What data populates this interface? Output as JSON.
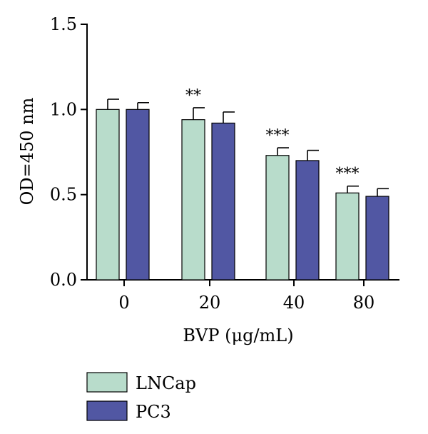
{
  "chart_data": {
    "type": "bar",
    "title": "",
    "xlabel": "BVP (μg/mL)",
    "ylabel": "OD=450 nm",
    "categories": [
      "0",
      "20",
      "40",
      "80"
    ],
    "ylim": [
      0.0,
      1.5
    ],
    "yticks": [
      "0.0",
      "0.5",
      "1.0",
      "1.5"
    ],
    "series": [
      {
        "name": "LNCap",
        "color": "#b8dccb",
        "values": [
          1.0,
          0.94,
          0.73,
          0.51
        ],
        "errors": [
          0.06,
          0.07,
          0.045,
          0.04
        ]
      },
      {
        "name": "PC3",
        "color": "#5157a3",
        "values": [
          1.0,
          0.92,
          0.7,
          0.49
        ],
        "errors": [
          0.04,
          0.065,
          0.06,
          0.045
        ]
      }
    ],
    "annotations": [
      {
        "category": "20",
        "series": "LNCap",
        "text": "**"
      },
      {
        "category": "40",
        "series": "LNCap",
        "text": "***"
      },
      {
        "category": "80",
        "series": "LNCap",
        "text": "***"
      }
    ],
    "legend_position": "bottom-left",
    "grid": false
  }
}
